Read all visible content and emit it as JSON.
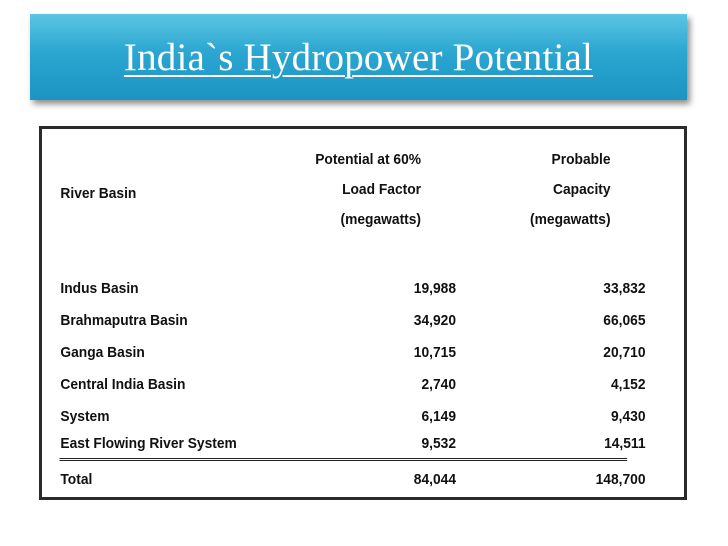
{
  "slide": {
    "title": "India`s Hydropower Potential"
  },
  "table": {
    "headers": {
      "basin": "River Basin",
      "potential": [
        "Potential at 60%",
        "Load Factor",
        "(megawatts)"
      ],
      "capacity": [
        "Probable",
        "Capacity",
        "(megawatts)"
      ]
    },
    "rows": [
      {
        "basin": "Indus Basin",
        "potential": "19,988",
        "capacity": "33,832"
      },
      {
        "basin": "Brahmaputra Basin",
        "potential": "34,920",
        "capacity": "66,065"
      },
      {
        "basin": "Ganga Basin",
        "potential": "10,715",
        "capacity": "20,710"
      },
      {
        "basin": "Central India Basin",
        "potential": "2,740",
        "capacity": "4,152"
      },
      {
        "basin": "System",
        "potential": "6,149",
        "capacity": "9,430"
      },
      {
        "basin": "East Flowing River System",
        "potential": "9,532",
        "capacity": "14,511"
      }
    ],
    "total": {
      "basin": "Total",
      "potential": "84,044",
      "capacity": "148,700"
    }
  }
}
